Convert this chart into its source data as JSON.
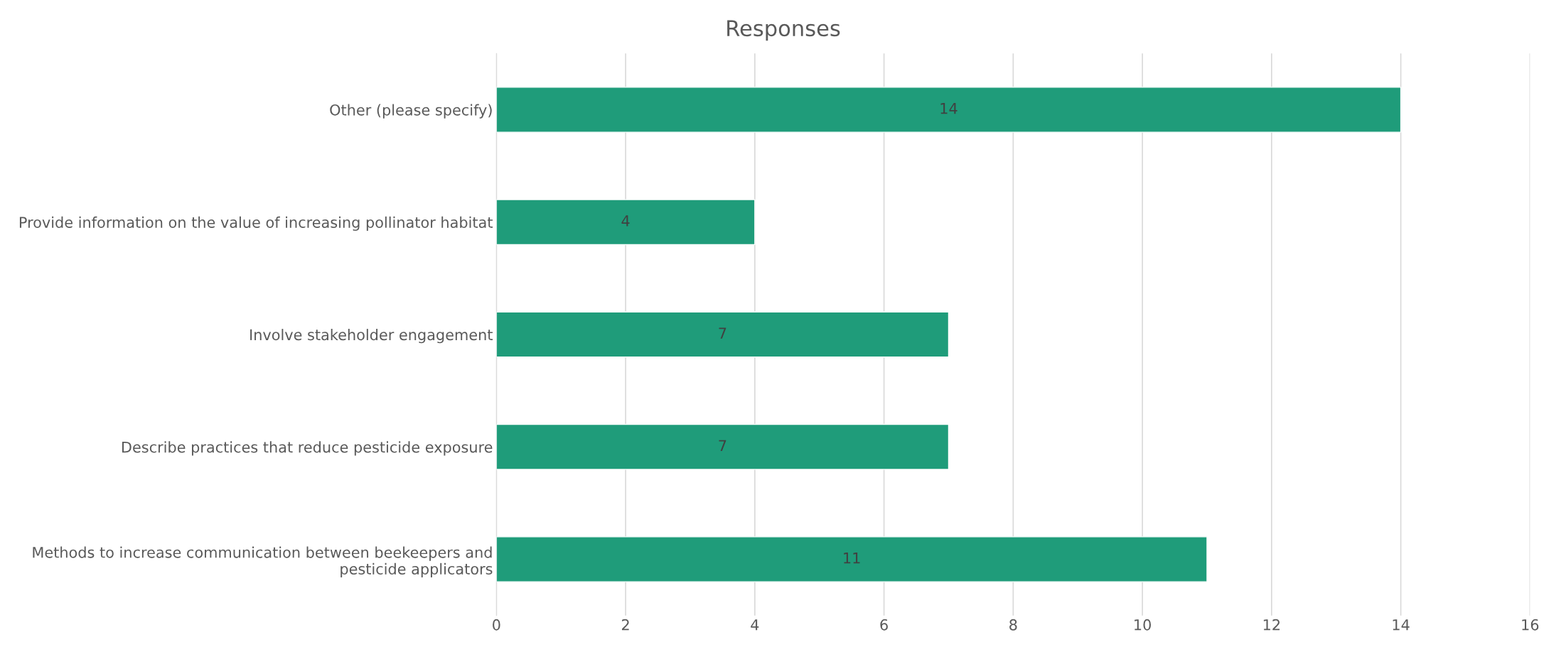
{
  "chart_data": {
    "type": "bar",
    "title": "Responses",
    "orientation": "horizontal",
    "categories": [
      "Other (please specify)",
      "Provide information on the value of increasing pollinator habitat",
      "Involve stakeholder engagement",
      "Describe practices that reduce pesticide exposure",
      "Methods to increase communication between beekeepers and pesticide applicators"
    ],
    "values": [
      14,
      4,
      7,
      7,
      11
    ],
    "color": "#1f9c7a",
    "xlim": [
      0,
      16
    ],
    "xticks": [
      0,
      2,
      4,
      6,
      8,
      10,
      12,
      14,
      16
    ],
    "grid": "x",
    "data_labels": true
  }
}
